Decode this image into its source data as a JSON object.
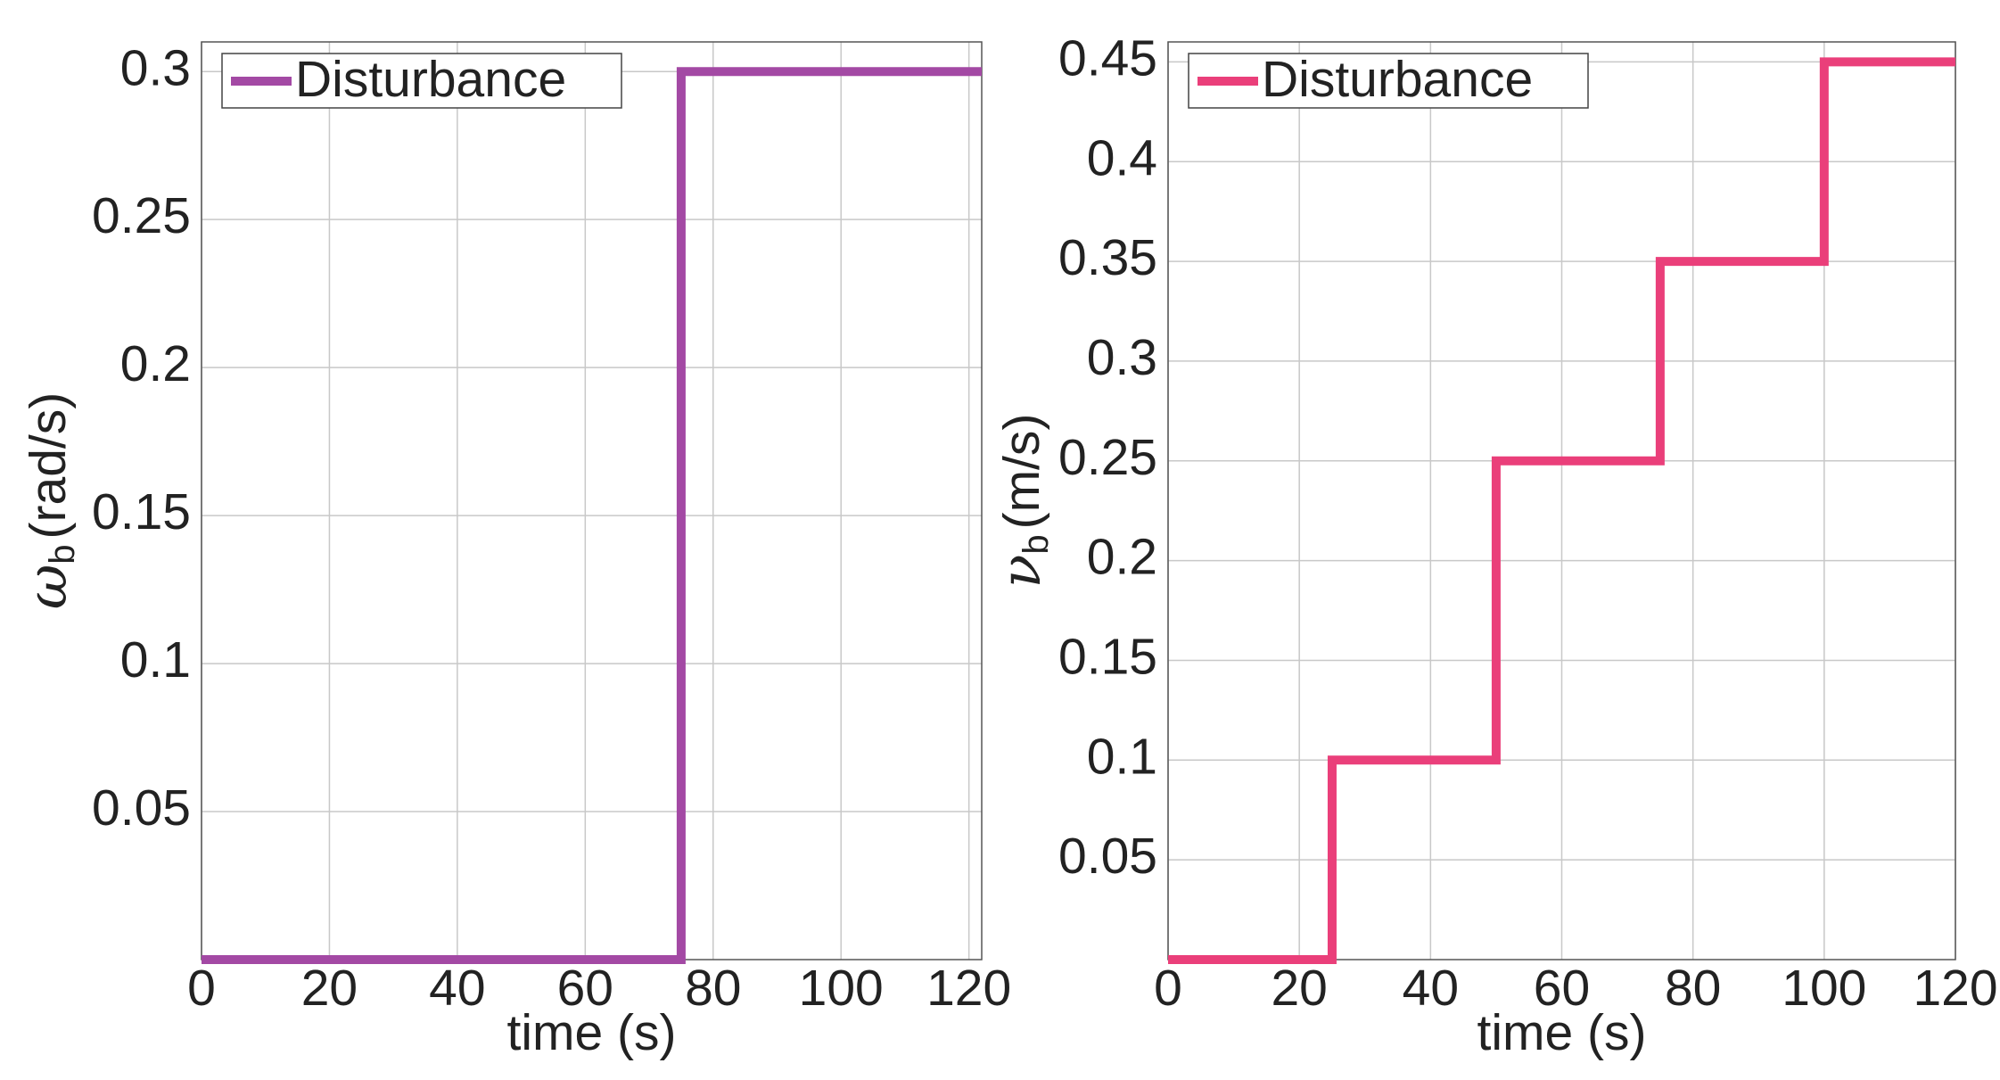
{
  "chart_data": [
    {
      "type": "line",
      "xlabel": "time (s)",
      "ylabel_symbol": "ω",
      "ylabel_subscript": "b",
      "ylabel_unit": "(rad/s)",
      "x": [
        0,
        75,
        75,
        122
      ],
      "series": [
        {
          "name": "Disturbance",
          "color": "#a349a4",
          "values": [
            0,
            0,
            0.3,
            0.3
          ]
        }
      ],
      "xlim": [
        0,
        122
      ],
      "ylim": [
        0,
        0.31
      ],
      "xticks": [
        0,
        20,
        40,
        60,
        80,
        100,
        120
      ],
      "yticks": [
        0.05,
        0.1,
        0.15,
        0.2,
        0.25,
        0.3
      ],
      "grid": true,
      "legend": "upper left"
    },
    {
      "type": "line",
      "xlabel": "time (s)",
      "ylabel_symbol": "ν",
      "ylabel_subscript": "b",
      "ylabel_unit": "(m/s)",
      "x": [
        0,
        25,
        25,
        50,
        50,
        75,
        75,
        100,
        100,
        120
      ],
      "series": [
        {
          "name": "Disturbance",
          "color": "#ea3f7a",
          "values": [
            0,
            0,
            0.1,
            0.1,
            0.25,
            0.25,
            0.35,
            0.35,
            0.45,
            0.45
          ]
        }
      ],
      "xlim": [
        0,
        120
      ],
      "ylim": [
        0,
        0.46
      ],
      "xticks": [
        0,
        20,
        40,
        60,
        80,
        100,
        120
      ],
      "yticks": [
        0.05,
        0.1,
        0.15,
        0.2,
        0.25,
        0.3,
        0.35,
        0.4,
        0.45
      ],
      "grid": true,
      "legend": "upper left"
    }
  ]
}
